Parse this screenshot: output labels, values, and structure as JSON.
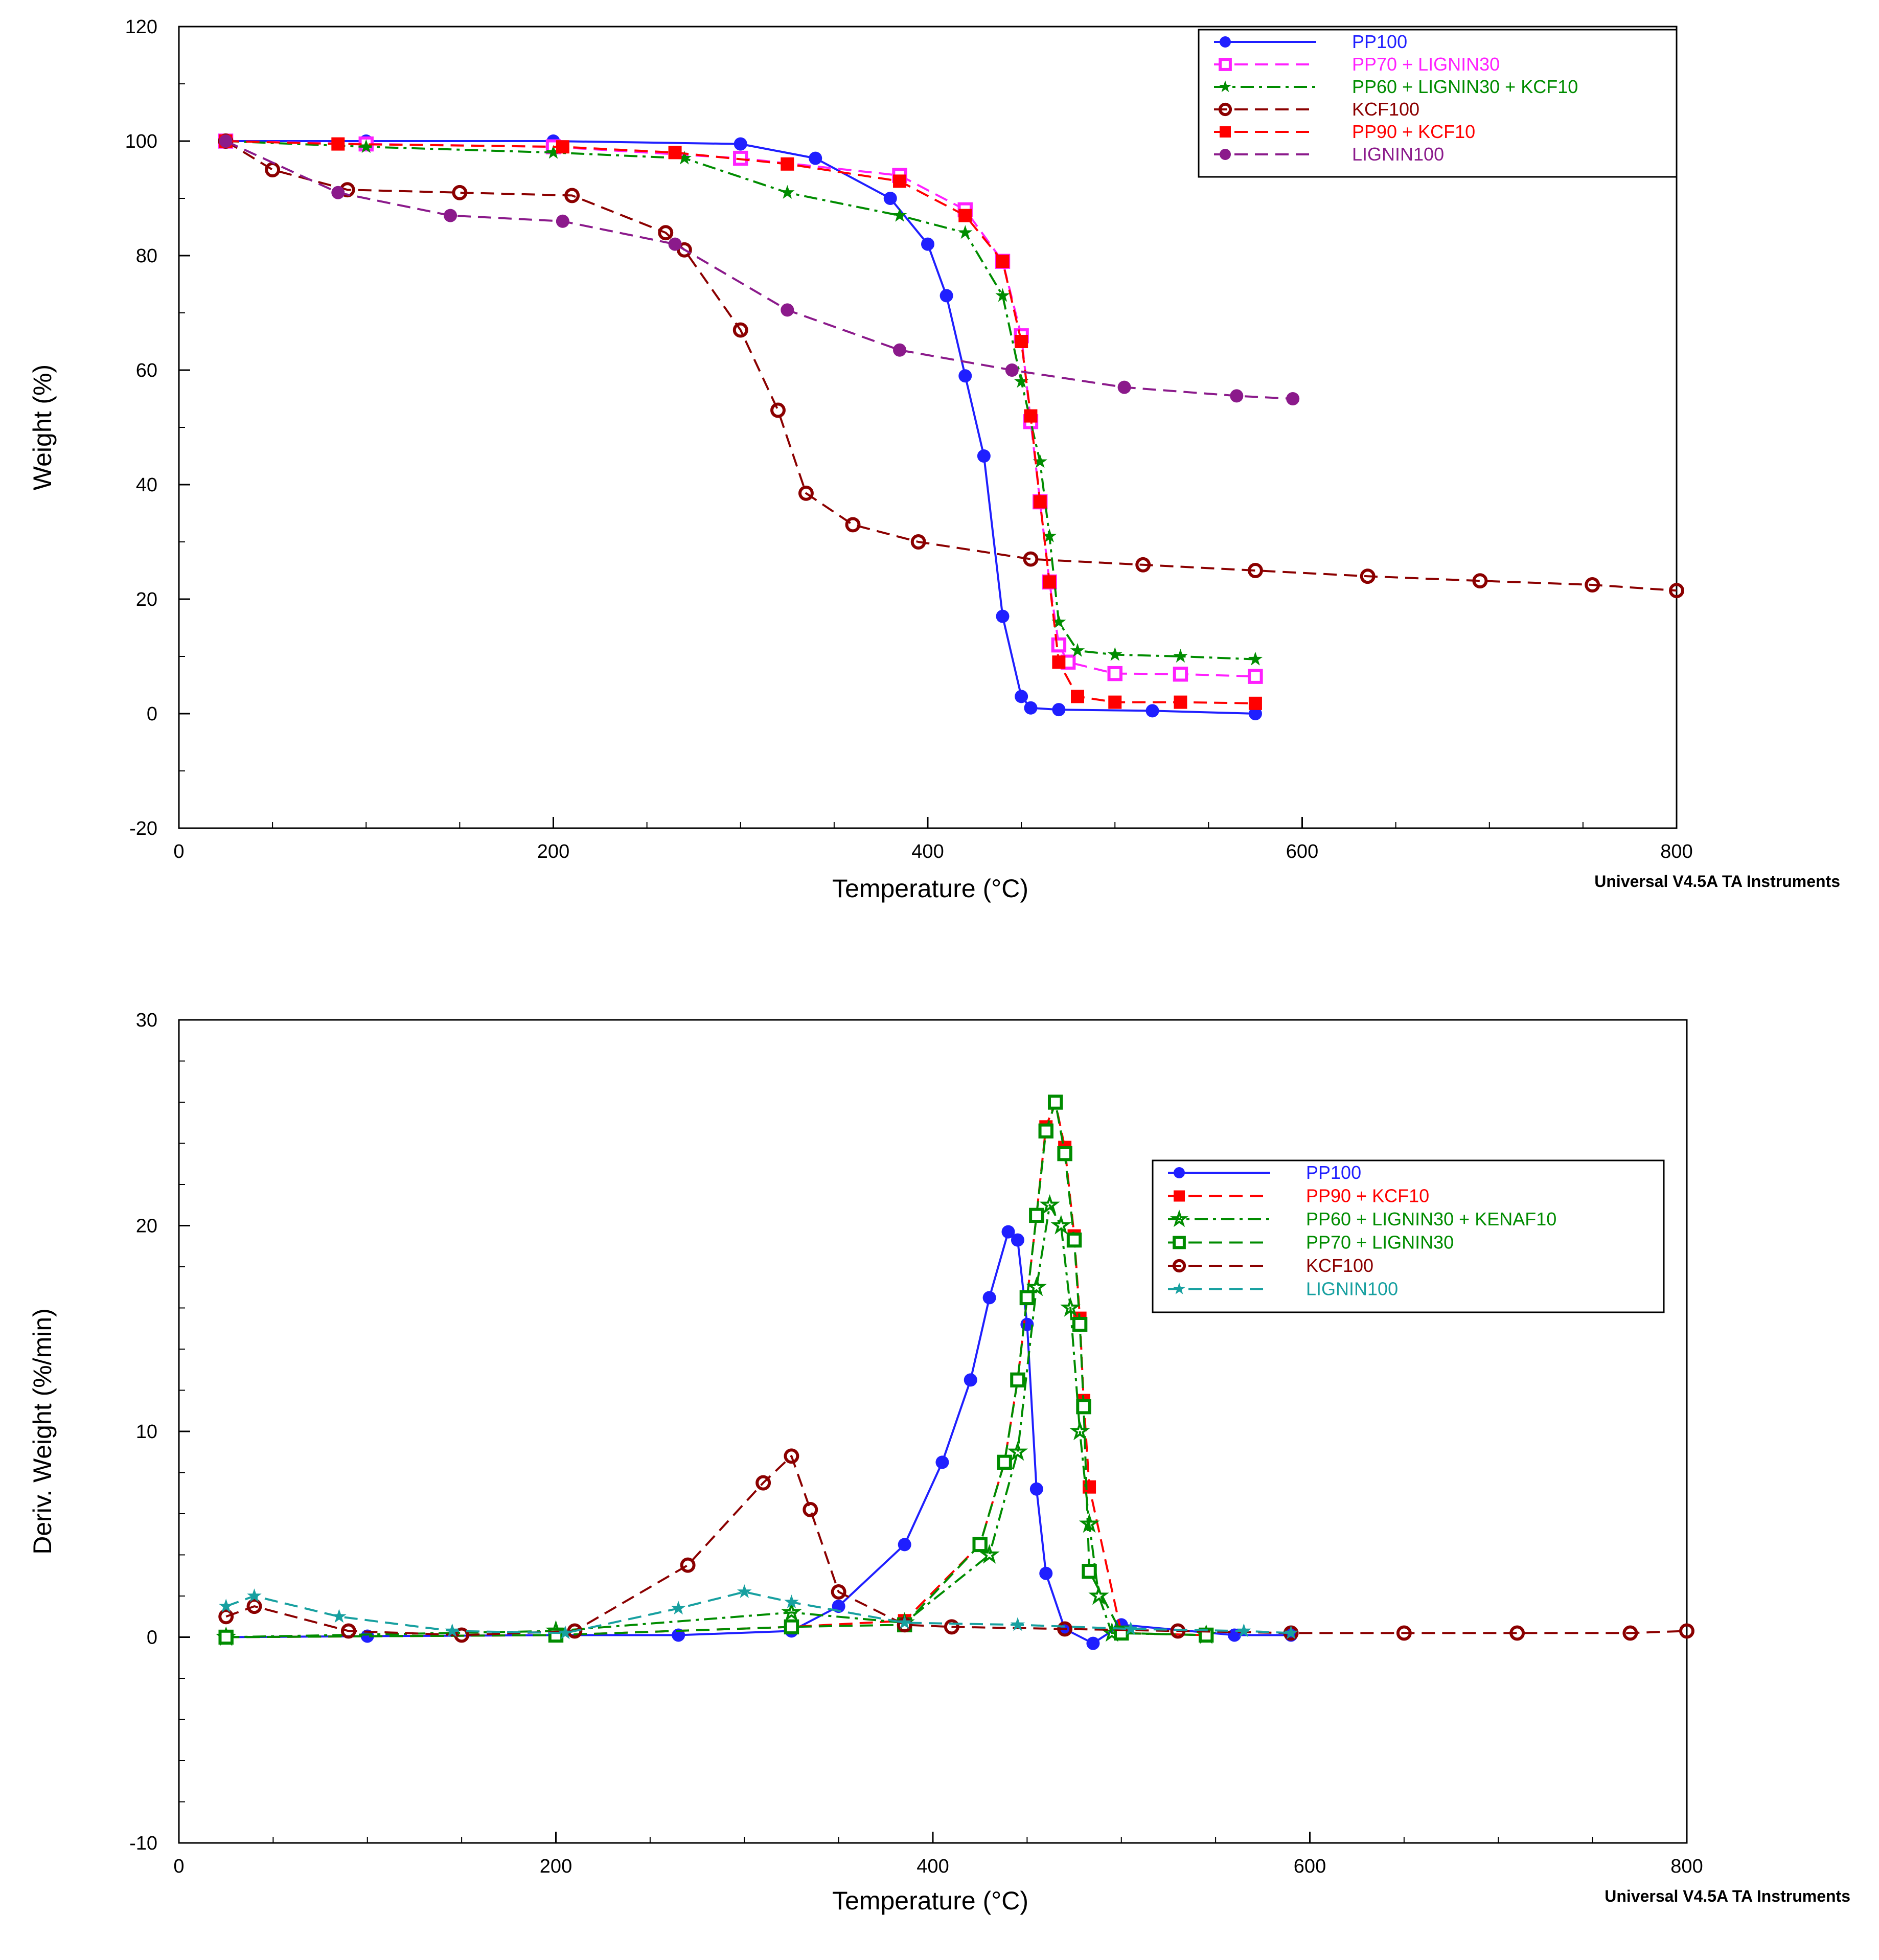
{
  "chart_data": [
    {
      "type": "line",
      "xlabel": "Temperature (°C)",
      "ylabel": "Weight (%)",
      "xlim": [
        0,
        800
      ],
      "ylim": [
        -20,
        120
      ],
      "xticks": [
        0,
        200,
        400,
        600,
        800
      ],
      "yticks": [
        -20,
        0,
        20,
        40,
        60,
        80,
        100,
        120
      ],
      "credit": "Universal V4.5A TA Instruments",
      "legend_position": "top-right",
      "series": [
        {
          "name": "PP100",
          "color": "#1f1fff",
          "marker": "filled-circle",
          "dash": "solid",
          "x": [
            25,
            100,
            200,
            300,
            340,
            380,
            400,
            410,
            420,
            430,
            440,
            450,
            455,
            470,
            520,
            575
          ],
          "y": [
            100,
            100,
            100,
            99.5,
            97,
            90,
            82,
            73,
            59,
            45,
            17,
            3,
            1,
            0.7,
            0.5,
            0
          ]
        },
        {
          "name": "PP70 + LIGNIN30",
          "color": "#ff20ff",
          "marker": "open-square",
          "dash": "dashed",
          "x": [
            25,
            100,
            200,
            300,
            385,
            420,
            440,
            450,
            455,
            460,
            465,
            470,
            475,
            500,
            535,
            575
          ],
          "y": [
            100,
            99.5,
            99,
            97,
            94,
            88,
            79,
            66,
            51,
            37,
            23,
            12,
            9,
            7,
            6.9,
            6.5
          ]
        },
        {
          "name": "PP60 + LIGNIN30 + KCF10",
          "color": "#008c00",
          "marker": "star",
          "dash": "dashdot",
          "x": [
            25,
            100,
            200,
            270,
            325,
            385,
            420,
            440,
            450,
            460,
            465,
            470,
            480,
            500,
            535,
            575
          ],
          "y": [
            100,
            99,
            98,
            97,
            91,
            87,
            84,
            73,
            58,
            44,
            31,
            16,
            11,
            10.3,
            10,
            9.5
          ]
        },
        {
          "name": "KCF100",
          "color": "#8b0000",
          "marker": "open-circle",
          "dash": "dashed",
          "x": [
            25,
            50,
            90,
            150,
            210,
            260,
            270,
            300,
            320,
            335,
            360,
            395,
            455,
            515,
            575,
            635,
            695,
            755,
            800
          ],
          "y": [
            100,
            95,
            91.5,
            91,
            90.5,
            84,
            81,
            67,
            53,
            38.5,
            33,
            30,
            27,
            26,
            25,
            24,
            23.2,
            22.5,
            21.5
          ]
        },
        {
          "name": "PP90 + KCF10",
          "color": "#ff0000",
          "marker": "filled-square",
          "dash": "dashed",
          "x": [
            25,
            85,
            205,
            265,
            325,
            385,
            420,
            440,
            450,
            455,
            460,
            465,
            470,
            480,
            500,
            535,
            575
          ],
          "y": [
            100,
            99.5,
            99,
            98,
            96,
            93,
            87,
            79,
            65,
            52,
            37,
            23,
            9,
            3,
            2,
            2,
            1.8
          ]
        },
        {
          "name": "LIGNIN100",
          "color": "#8b1a8b",
          "marker": "filled-circle",
          "dash": "dashed",
          "x": [
            25,
            85,
            145,
            205,
            265,
            325,
            385,
            445,
            505,
            565,
            595
          ],
          "y": [
            100,
            91,
            87,
            86,
            82,
            70.5,
            63.5,
            60,
            57,
            55.5,
            55
          ]
        }
      ]
    },
    {
      "type": "line",
      "xlabel": "Temperature (°C)",
      "ylabel": "Deriv. Weight (%/min)",
      "xlim": [
        0,
        800
      ],
      "ylim": [
        -10,
        30
      ],
      "xticks": [
        0,
        200,
        400,
        600,
        800
      ],
      "yticks": [
        -10,
        0,
        10,
        20,
        30
      ],
      "credit": "Universal V4.5A TA Instruments",
      "legend_position": "right",
      "series": [
        {
          "name": "PP100",
          "color": "#1f1fff",
          "marker": "filled-circle",
          "dash": "solid",
          "x": [
            25,
            100,
            200,
            265,
            325,
            350,
            385,
            405,
            420,
            430,
            440,
            445,
            450,
            455,
            460,
            470,
            485,
            500,
            560,
            590
          ],
          "y": [
            0,
            0.05,
            0.1,
            0.1,
            0.3,
            1.5,
            4.5,
            8.5,
            12.5,
            16.5,
            19.7,
            19.3,
            15.2,
            7.2,
            3.1,
            0.4,
            -0.3,
            0.6,
            0.1,
            0.1
          ]
        },
        {
          "name": "PP90 + KCF10",
          "color": "#ff0000",
          "marker": "filled-square",
          "dash": "dashed",
          "x": [
            25,
            200,
            325,
            385,
            425,
            438,
            445,
            450,
            455,
            460,
            465,
            470,
            475,
            478,
            480,
            483,
            500,
            545
          ],
          "y": [
            0,
            0.1,
            0.5,
            0.8,
            4.5,
            8.5,
            12.5,
            16.5,
            20.5,
            24.8,
            26,
            23.8,
            19.5,
            15.5,
            11.5,
            7.3,
            0.2,
            0.1
          ]
        },
        {
          "name": "PP60 + LIGNIN30 + KENAF10",
          "color": "#008c00",
          "marker": "open-star",
          "dash": "dashdot",
          "x": [
            25,
            200,
            325,
            385,
            430,
            445,
            455,
            462,
            468,
            473,
            478,
            483,
            488,
            495,
            545
          ],
          "y": [
            0,
            0.3,
            1.2,
            0.7,
            4,
            9,
            17,
            21,
            20,
            16,
            10,
            5.5,
            2,
            0.2,
            0.1
          ]
        },
        {
          "name": "PP70 + LIGNIN30",
          "color": "#008c00",
          "marker": "open-square",
          "dash": "dashed",
          "x": [
            25,
            200,
            325,
            385,
            425,
            438,
            445,
            450,
            455,
            460,
            465,
            470,
            475,
            478,
            480,
            483,
            500,
            545
          ],
          "y": [
            0,
            0.1,
            0.5,
            0.6,
            4.5,
            8.5,
            12.5,
            16.5,
            20.5,
            24.6,
            26,
            23.5,
            19.3,
            15.2,
            11.2,
            3.2,
            0.2,
            0.1
          ]
        },
        {
          "name": "KCF100",
          "color": "#8b0000",
          "marker": "open-circle",
          "dash": "dashed",
          "x": [
            25,
            40,
            90,
            150,
            210,
            270,
            310,
            325,
            335,
            350,
            385,
            410,
            470,
            530,
            590,
            650,
            710,
            770,
            800
          ],
          "y": [
            1,
            1.5,
            0.3,
            0.1,
            0.3,
            3.5,
            7.5,
            8.8,
            6.2,
            2.2,
            0.6,
            0.5,
            0.4,
            0.3,
            0.2,
            0.2,
            0.2,
            0.2,
            0.3
          ]
        },
        {
          "name": "LIGNIN100",
          "color": "#17a0a0",
          "marker": "star",
          "dash": "dashed",
          "x": [
            25,
            40,
            85,
            145,
            205,
            265,
            300,
            325,
            385,
            445,
            505,
            565,
            590
          ],
          "y": [
            1.5,
            2,
            1,
            0.3,
            0.2,
            1.4,
            2.2,
            1.7,
            0.7,
            0.6,
            0.4,
            0.3,
            0.2
          ]
        }
      ]
    }
  ]
}
